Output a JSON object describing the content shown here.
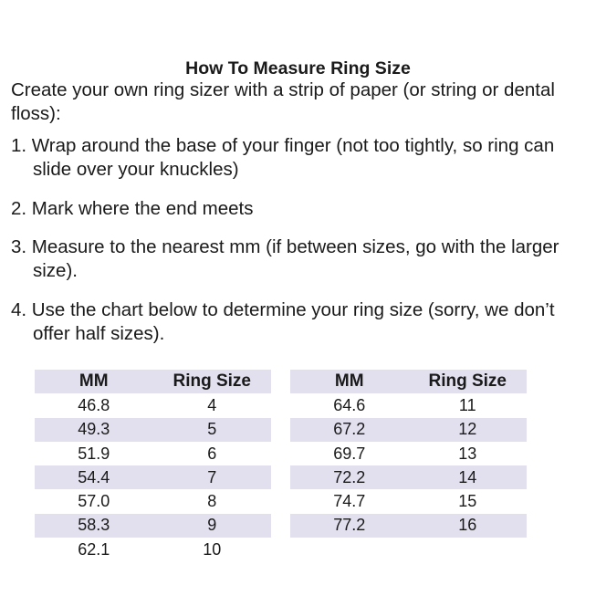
{
  "title": "How To Measure Ring Size",
  "intro": "Create your own ring sizer with a strip of paper (or string or dental floss):",
  "steps": [
    "1. Wrap around the base of your finger (not too tightly, so ring can slide over your knuckles)",
    "2. Mark where the end meets",
    "3. Measure to the nearest mm (if between sizes, go with the larger size).",
    "4. Use the chart below to determine your ring size (sorry, we don’t offer half sizes)."
  ],
  "table": {
    "headers": [
      "MM",
      "Ring Size"
    ],
    "left": [
      [
        "46.8",
        "4"
      ],
      [
        "49.3",
        "5"
      ],
      [
        "51.9",
        "6"
      ],
      [
        "54.4",
        "7"
      ],
      [
        "57.0",
        "8"
      ],
      [
        "58.3",
        "9"
      ],
      [
        "62.1",
        "10"
      ]
    ],
    "right": [
      [
        "64.6",
        "11"
      ],
      [
        "67.2",
        "12"
      ],
      [
        "69.7",
        "13"
      ],
      [
        "72.2",
        "14"
      ],
      [
        "74.7",
        "15"
      ],
      [
        "77.2",
        "16"
      ]
    ]
  },
  "colors": {
    "row_shade": "#e2e0ee"
  }
}
